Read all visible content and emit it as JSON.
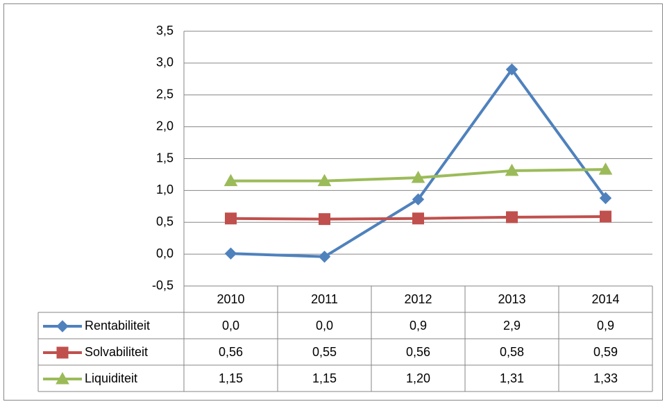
{
  "chart_data": {
    "type": "line",
    "categories": [
      "2010",
      "2011",
      "2012",
      "2013",
      "2014"
    ],
    "ylim": [
      -0.5,
      3.5
    ],
    "yticks": [
      {
        "value": -0.5,
        "label": "-0,5"
      },
      {
        "value": 0,
        "label": "0,0"
      },
      {
        "value": 0.5,
        "label": "0,5"
      },
      {
        "value": 1,
        "label": "1,0"
      },
      {
        "value": 1.5,
        "label": "1,5"
      },
      {
        "value": 2,
        "label": "2,0"
      },
      {
        "value": 2.5,
        "label": "2,5"
      },
      {
        "value": 3,
        "label": "3,0"
      },
      {
        "value": 3.5,
        "label": "3,5"
      }
    ],
    "grid": true,
    "data_table": true,
    "series": [
      {
        "name": "Rentabiliteit",
        "color": "#4f81bd",
        "marker": "diamond",
        "values": [
          0.01,
          -0.04,
          0.86,
          2.9,
          0.88
        ],
        "value_labels": [
          "0,0",
          "0,0",
          "0,9",
          "2,9",
          "0,9"
        ]
      },
      {
        "name": "Solvabiliteit",
        "color": "#c0504d",
        "marker": "square",
        "values": [
          0.56,
          0.55,
          0.56,
          0.58,
          0.59
        ],
        "value_labels": [
          "0,56",
          "0,55",
          "0,56",
          "0,58",
          "0,59"
        ]
      },
      {
        "name": "Liquiditeit",
        "color": "#9bbb59",
        "marker": "triangle",
        "values": [
          1.15,
          1.15,
          1.2,
          1.31,
          1.33
        ],
        "value_labels": [
          "1,15",
          "1,15",
          "1,20",
          "1,31",
          "1,33"
        ]
      }
    ]
  }
}
